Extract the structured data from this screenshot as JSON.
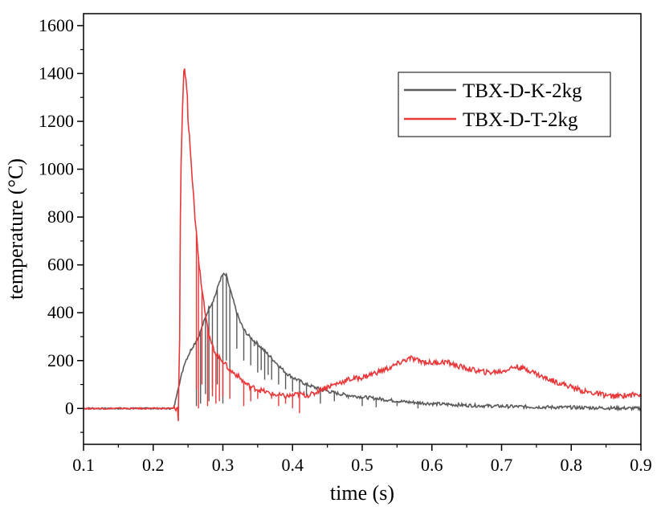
{
  "chart_data": {
    "type": "line",
    "title": "",
    "xlabel": "time (s)",
    "ylabel": "temperature (°C)",
    "xlim": [
      0.1,
      0.9
    ],
    "ylim": [
      -150,
      1650
    ],
    "xticks": [
      0.1,
      0.2,
      0.3,
      0.4,
      0.5,
      0.6,
      0.7,
      0.8,
      0.9
    ],
    "xtick_labels": [
      "0.1",
      "0.2",
      "0.3",
      "0.4",
      "0.5",
      "0.6",
      "0.7",
      "0.8",
      "0.9"
    ],
    "yticks": [
      0,
      200,
      400,
      600,
      800,
      1000,
      1200,
      1400,
      1600
    ],
    "ytick_labels": [
      "0",
      "200",
      "400",
      "600",
      "800",
      "1000",
      "1200",
      "1400",
      "1600"
    ],
    "grid": false,
    "legend_position": "top-right",
    "series": [
      {
        "name": "TBX-D-K-2kg",
        "color": "#5a5a5a",
        "x": [
          0.1,
          0.15,
          0.2,
          0.225,
          0.229,
          0.232,
          0.235,
          0.24,
          0.245,
          0.25,
          0.255,
          0.26,
          0.265,
          0.27,
          0.275,
          0.28,
          0.285,
          0.29,
          0.295,
          0.3,
          0.305,
          0.31,
          0.315,
          0.32,
          0.325,
          0.33,
          0.335,
          0.34,
          0.35,
          0.36,
          0.37,
          0.38,
          0.39,
          0.4,
          0.42,
          0.44,
          0.46,
          0.48,
          0.5,
          0.53,
          0.56,
          0.6,
          0.65,
          0.7,
          0.75,
          0.8,
          0.85,
          0.9
        ],
        "y": [
          0,
          0,
          0,
          0,
          0,
          30,
          80,
          130,
          190,
          220,
          250,
          275,
          300,
          340,
          380,
          420,
          445,
          480,
          530,
          560,
          555,
          500,
          450,
          400,
          360,
          330,
          310,
          295,
          270,
          240,
          210,
          180,
          150,
          130,
          100,
          80,
          65,
          55,
          48,
          38,
          28,
          20,
          13,
          9,
          6,
          4,
          2,
          0
        ],
        "drops": [
          [
            0.262,
            10
          ],
          [
            0.268,
            20
          ],
          [
            0.275,
            60
          ],
          [
            0.28,
            30
          ],
          [
            0.285,
            80
          ],
          [
            0.292,
            100
          ],
          [
            0.3,
            20
          ],
          [
            0.305,
            200
          ],
          [
            0.31,
            150
          ],
          [
            0.32,
            250
          ],
          [
            0.33,
            200
          ],
          [
            0.34,
            180
          ],
          [
            0.345,
            260
          ],
          [
            0.35,
            150
          ],
          [
            0.355,
            160
          ],
          [
            0.36,
            120
          ],
          [
            0.365,
            140
          ],
          [
            0.37,
            120
          ],
          [
            0.38,
            100
          ],
          [
            0.39,
            80
          ],
          [
            0.4,
            70
          ],
          [
            0.41,
            50
          ],
          [
            0.42,
            55
          ],
          [
            0.44,
            20
          ],
          [
            0.46,
            30
          ],
          [
            0.48,
            40
          ],
          [
            0.5,
            10
          ],
          [
            0.52,
            5
          ],
          [
            0.55,
            10
          ],
          [
            0.58,
            0
          ]
        ]
      },
      {
        "name": "TBX-D-T-2kg",
        "color": "#e8383a",
        "x": [
          0.1,
          0.15,
          0.2,
          0.235,
          0.236,
          0.237,
          0.238,
          0.239,
          0.24,
          0.242,
          0.244,
          0.245,
          0.247,
          0.249,
          0.25,
          0.253,
          0.255,
          0.258,
          0.26,
          0.263,
          0.266,
          0.27,
          0.274,
          0.278,
          0.28,
          0.285,
          0.29,
          0.295,
          0.3,
          0.305,
          0.31,
          0.32,
          0.33,
          0.34,
          0.35,
          0.36,
          0.37,
          0.38,
          0.39,
          0.4,
          0.41,
          0.42,
          0.43,
          0.44,
          0.46,
          0.48,
          0.5,
          0.52,
          0.54,
          0.56,
          0.57,
          0.58,
          0.6,
          0.62,
          0.64,
          0.66,
          0.68,
          0.7,
          0.72,
          0.74,
          0.76,
          0.78,
          0.8,
          0.82,
          0.84,
          0.86,
          0.88,
          0.9
        ],
        "y": [
          0,
          0,
          0,
          0,
          -50,
          150,
          300,
          800,
          1000,
          1250,
          1400,
          1410,
          1380,
          1300,
          1200,
          1100,
          1000,
          900,
          800,
          700,
          600,
          500,
          420,
          350,
          300,
          260,
          230,
          210,
          200,
          180,
          160,
          140,
          110,
          90,
          80,
          70,
          60,
          55,
          50,
          55,
          60,
          55,
          60,
          80,
          100,
          120,
          130,
          150,
          170,
          200,
          210,
          200,
          190,
          195,
          175,
          160,
          150,
          155,
          175,
          160,
          130,
          110,
          90,
          70,
          60,
          50,
          55,
          60
        ],
        "drops": [
          [
            0.262,
            80
          ],
          [
            0.265,
            0
          ],
          [
            0.27,
            100
          ],
          [
            0.278,
            10
          ],
          [
            0.285,
            50
          ],
          [
            0.29,
            20
          ],
          [
            0.295,
            30
          ],
          [
            0.3,
            50
          ],
          [
            0.31,
            40
          ],
          [
            0.33,
            10
          ],
          [
            0.34,
            30
          ],
          [
            0.35,
            40
          ],
          [
            0.37,
            40
          ],
          [
            0.38,
            10
          ],
          [
            0.39,
            20
          ],
          [
            0.4,
            0
          ],
          [
            0.41,
            -20
          ]
        ]
      }
    ]
  }
}
